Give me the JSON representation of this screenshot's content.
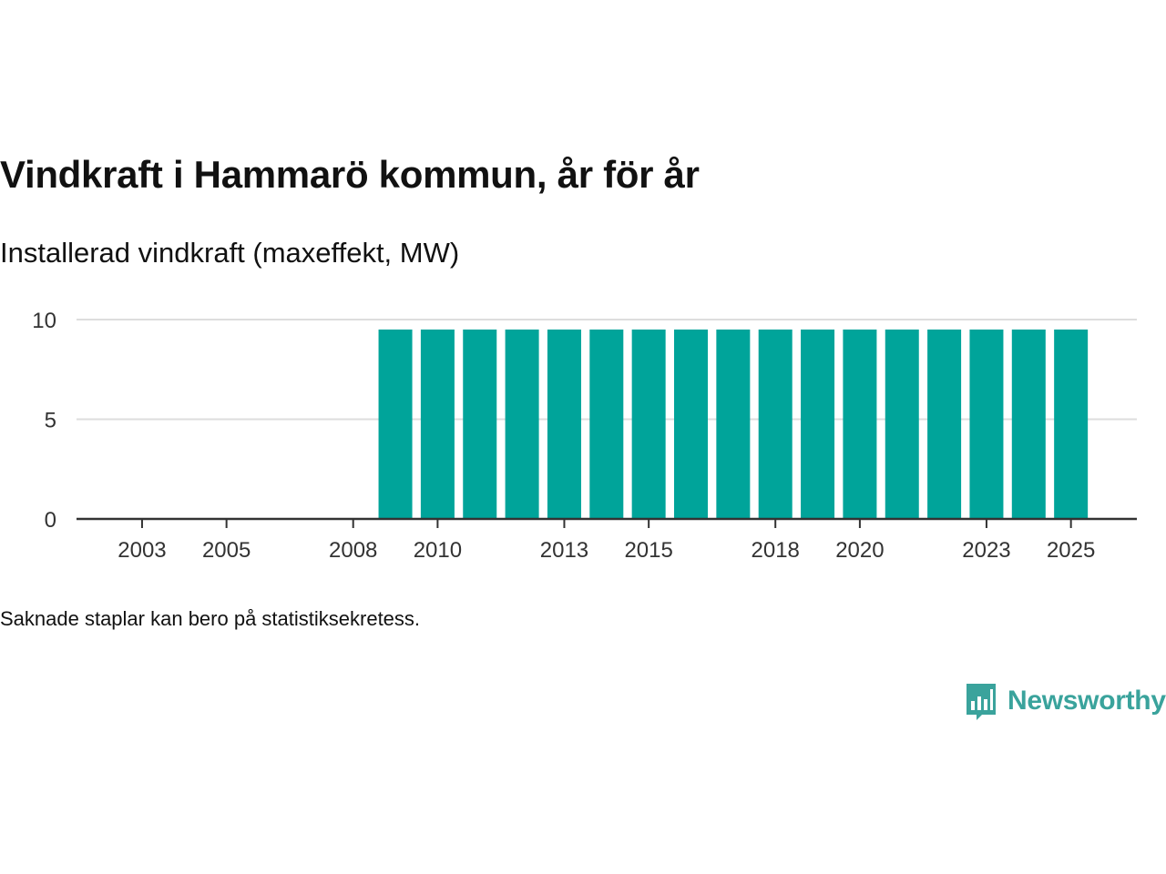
{
  "title": "Vindkraft i Hammarö kommun, år för år",
  "subtitle": "Installerad vindkraft (maxeffekt, MW)",
  "note": "Saknade staplar kan bero på statistiksekretess.",
  "brand": {
    "name": "Newsworthy",
    "color": "#3aa39c",
    "icon": "newsworthy-logo-icon"
  },
  "chart_data": {
    "type": "bar",
    "title": "Vindkraft i Hammarö kommun, år för år",
    "subtitle": "Installerad vindkraft (maxeffekt, MW)",
    "xlabel": "",
    "ylabel": "",
    "categories": [
      "2002",
      "2003",
      "2004",
      "2005",
      "2006",
      "2007",
      "2008",
      "2009",
      "2010",
      "2011",
      "2012",
      "2013",
      "2014",
      "2015",
      "2016",
      "2017",
      "2018",
      "2019",
      "2020",
      "2021",
      "2022",
      "2023",
      "2024",
      "2025"
    ],
    "values": [
      0,
      0,
      0,
      0,
      0,
      0,
      0,
      9.5,
      9.5,
      9.5,
      9.5,
      9.5,
      9.5,
      9.5,
      9.5,
      9.5,
      9.5,
      9.5,
      9.5,
      9.5,
      9.5,
      9.5,
      9.5,
      9.5
    ],
    "x_tick_labels": [
      "2003",
      "2005",
      "2008",
      "2010",
      "2013",
      "2015",
      "2018",
      "2020",
      "2023",
      "2025"
    ],
    "y_ticks": [
      0,
      5,
      10
    ],
    "ylim": [
      0,
      10
    ],
    "grid": true,
    "bar_color": "#00a49a"
  }
}
